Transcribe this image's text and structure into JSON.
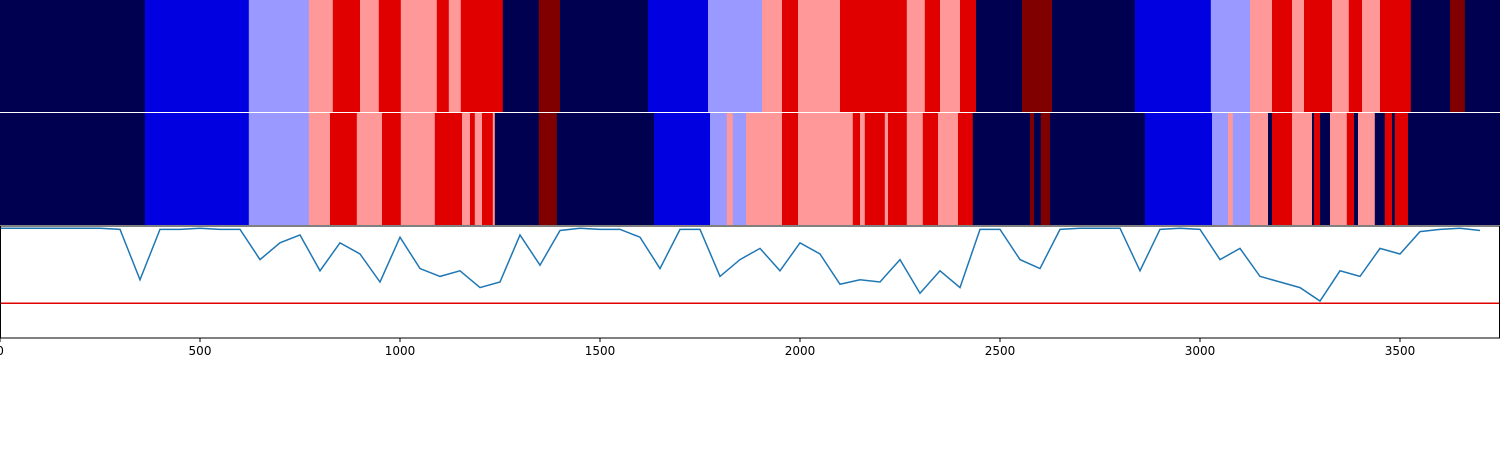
{
  "chart_data": {
    "type": "segments-line",
    "xlim": [
      0,
      3750
    ],
    "xticks": [
      0,
      500,
      1000,
      1500,
      2000,
      2500,
      3000,
      3500
    ],
    "state_colors": [
      "#000050",
      "#0000e0",
      "#9999ff",
      "#ff9999",
      "#e00000",
      "#800000"
    ],
    "bars": [
      {
        "edges": [
          0,
          362,
          622,
          772,
          832,
          900,
          947,
          1002,
          1092,
          1122,
          1152,
          1257,
          1347,
          1400,
          1620,
          1770,
          1905,
          1955,
          1995,
          2100,
          2267,
          2312,
          2350,
          2400,
          2440,
          2555,
          2630,
          2837,
          3027,
          3125,
          3180,
          3230,
          3260,
          3330,
          3372,
          3405,
          3450,
          3527,
          3625,
          3662,
          3750
        ],
        "states": [
          0,
          1,
          2,
          3,
          4,
          3,
          4,
          3,
          4,
          3,
          4,
          0,
          5,
          0,
          1,
          2,
          3,
          4,
          3,
          4,
          3,
          4,
          3,
          4,
          0,
          5,
          0,
          1,
          2,
          3,
          4,
          3,
          4,
          3,
          4,
          3,
          4,
          0,
          5,
          0
        ]
      },
      {
        "edges": [
          0,
          362,
          622,
          772,
          825,
          892,
          955,
          1002,
          1087,
          1155,
          1175,
          1187,
          1205,
          1232,
          1237,
          1347,
          1392,
          1635,
          1775,
          1817,
          1832,
          1865,
          1895,
          1955,
          1995,
          2132,
          2150,
          2162,
          2212,
          2220,
          2267,
          2307,
          2345,
          2395,
          2432,
          2575,
          2585,
          2602,
          2625,
          2862,
          3030,
          3070,
          3082,
          3125,
          3170,
          3180,
          3230,
          3280,
          3285,
          3300,
          3325,
          3367,
          3385,
          3395,
          3437,
          3462,
          3480,
          3487,
          3495,
          3520,
          3750
        ],
        "states": [
          0,
          1,
          2,
          3,
          4,
          3,
          4,
          3,
          4,
          3,
          4,
          3,
          4,
          3,
          0,
          5,
          0,
          1,
          2,
          3,
          2,
          3,
          3,
          4,
          3,
          4,
          3,
          4,
          3,
          4,
          3,
          4,
          3,
          4,
          0,
          5,
          0,
          5,
          0,
          1,
          2,
          3,
          2,
          3,
          0,
          4,
          3,
          0,
          4,
          0,
          3,
          4,
          0,
          3,
          0,
          4,
          0,
          4,
          4,
          0
        ]
      }
    ],
    "line": {
      "color": "#1f77b4",
      "x": [
        0,
        50,
        100,
        150,
        200,
        250,
        300,
        350,
        400,
        450,
        500,
        550,
        600,
        650,
        700,
        750,
        800,
        850,
        900,
        950,
        1000,
        1050,
        1100,
        1150,
        1200,
        1250,
        1300,
        1350,
        1400,
        1450,
        1500,
        1550,
        1600,
        1650,
        1700,
        1750,
        1800,
        1850,
        1900,
        1950,
        2000,
        2050,
        2100,
        2150,
        2200,
        2250,
        2300,
        2350,
        2400,
        2450,
        2500,
        2550,
        2600,
        2650,
        2700,
        2750,
        2800,
        2850,
        2900,
        2950,
        3000,
        3050,
        3100,
        3150,
        3200,
        3250,
        3300,
        3350,
        3400,
        3450,
        3500,
        3550,
        3600,
        3650,
        3700
      ],
      "values": [
        0.98,
        0.98,
        0.98,
        0.98,
        0.98,
        0.98,
        0.97,
        0.52,
        0.97,
        0.97,
        0.98,
        0.97,
        0.97,
        0.7,
        0.85,
        0.92,
        0.6,
        0.85,
        0.75,
        0.5,
        0.9,
        0.62,
        0.55,
        0.6,
        0.45,
        0.5,
        0.92,
        0.65,
        0.96,
        0.98,
        0.97,
        0.97,
        0.9,
        0.62,
        0.97,
        0.97,
        0.55,
        0.7,
        0.8,
        0.6,
        0.85,
        0.75,
        0.48,
        0.52,
        0.5,
        0.7,
        0.4,
        0.6,
        0.45,
        0.97,
        0.97,
        0.7,
        0.62,
        0.97,
        0.98,
        0.98,
        0.98,
        0.6,
        0.97,
        0.98,
        0.97,
        0.7,
        0.8,
        0.55,
        0.5,
        0.45,
        0.33,
        0.6,
        0.55,
        0.8,
        0.75,
        0.95,
        0.97,
        0.98,
        0.96
      ]
    },
    "ylim": [
      0,
      1
    ],
    "threshold": {
      "value": 0.31,
      "color": "#e00000"
    }
  }
}
